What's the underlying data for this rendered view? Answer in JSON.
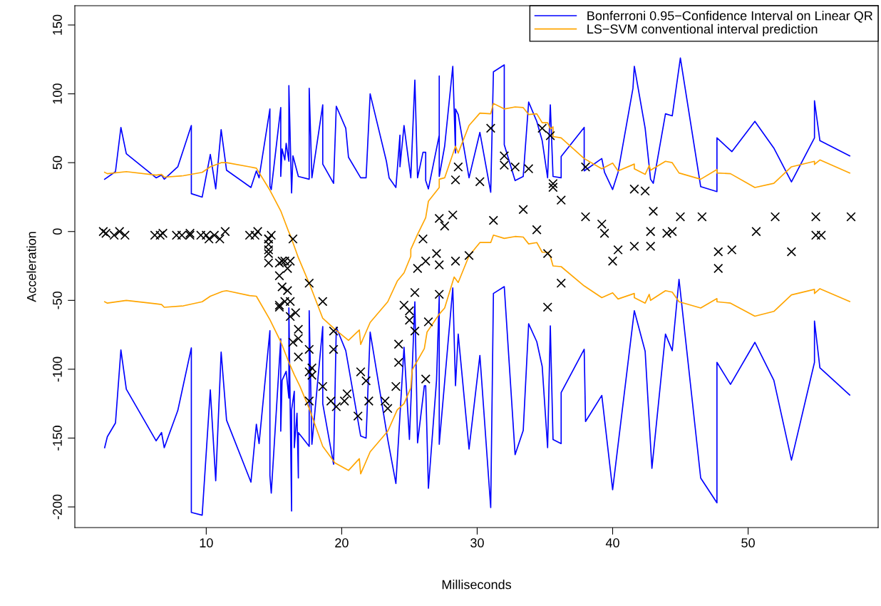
{
  "chart_data": {
    "type": "line",
    "xlabel": "Milliseconds",
    "ylabel": "Acceleration",
    "xlim": [
      0.3,
      59.6
    ],
    "ylim": [
      -215,
      164
    ],
    "xticks": [
      10,
      20,
      30,
      40,
      50
    ],
    "yticks": [
      -200,
      -150,
      -100,
      -50,
      0,
      50,
      100,
      150
    ],
    "grid": false,
    "legend": "top right",
    "series": [
      {
        "type": "scatter",
        "color": "#000000",
        "marker": "cross",
        "x": [
          2.4,
          2.6,
          3.2,
          3.6,
          4.0,
          6.2,
          6.6,
          6.8,
          7.8,
          8.2,
          8.8,
          8.8,
          9.6,
          10.0,
          10.2,
          10.6,
          11.0,
          11.4,
          13.2,
          13.6,
          13.8,
          14.6,
          14.6,
          14.6,
          14.6,
          14.6,
          14.6,
          14.8,
          15.4,
          15.4,
          15.4,
          15.4,
          15.6,
          15.6,
          15.8,
          15.8,
          16.0,
          16.0,
          16.2,
          16.2,
          16.2,
          16.4,
          16.4,
          16.6,
          16.8,
          16.8,
          16.8,
          17.6,
          17.6,
          17.6,
          17.6,
          17.8,
          17.8,
          18.6,
          18.6,
          19.2,
          19.4,
          19.4,
          19.6,
          20.2,
          20.4,
          21.2,
          21.4,
          21.8,
          22.0,
          23.2,
          23.4,
          24.0,
          24.2,
          24.2,
          24.6,
          25.0,
          25.0,
          25.4,
          25.4,
          25.6,
          26.0,
          26.2,
          26.2,
          26.4,
          27.0,
          27.2,
          27.2,
          27.2,
          27.6,
          28.2,
          28.4,
          28.4,
          28.6,
          29.4,
          30.2,
          31.0,
          31.2,
          32.0,
          32.0,
          32.8,
          33.4,
          33.8,
          34.4,
          34.8,
          35.2,
          35.2,
          35.4,
          35.6,
          35.6,
          36.2,
          36.2,
          38.0,
          38.0,
          39.2,
          39.4,
          40.0,
          40.4,
          41.6,
          41.6,
          42.4,
          42.8,
          42.8,
          43.0,
          44.0,
          44.4,
          45.0,
          46.6,
          47.8,
          47.8,
          48.8,
          50.6,
          52.0,
          53.2,
          55.0,
          55.0,
          55.4,
          57.6
        ],
        "values": [
          0.0,
          -1.3,
          -2.7,
          0.0,
          -2.7,
          -2.7,
          -2.7,
          -1.3,
          -2.7,
          -2.7,
          -1.3,
          -2.7,
          -2.7,
          -2.7,
          -5.4,
          -2.7,
          -5.4,
          0.0,
          -2.7,
          -2.7,
          0.0,
          -13.3,
          -5.4,
          -5.4,
          -9.3,
          -16.0,
          -22.8,
          -2.7,
          -22.8,
          -32.1,
          -53.5,
          -54.9,
          -40.2,
          -21.5,
          -21.5,
          -50.8,
          -42.9,
          -26.8,
          -21.5,
          -50.8,
          -61.7,
          -5.4,
          -80.4,
          -59.0,
          -71.0,
          -91.1,
          -77.7,
          -37.5,
          -85.6,
          -123.1,
          -101.9,
          -99.1,
          -104.4,
          -112.5,
          -50.8,
          -123.1,
          -85.6,
          -72.3,
          -127.2,
          -123.1,
          -117.9,
          -134.0,
          -101.9,
          -108.4,
          -123.1,
          -123.1,
          -128.5,
          -112.5,
          -95.1,
          -81.8,
          -53.5,
          -64.4,
          -57.6,
          -72.3,
          -44.3,
          -26.8,
          -5.4,
          -107.1,
          -21.5,
          -65.6,
          -16.0,
          -45.6,
          -24.2,
          9.5,
          4.0,
          12.0,
          -21.5,
          37.5,
          46.9,
          -17.4,
          36.2,
          75.0,
          8.1,
          54.9,
          48.2,
          46.9,
          16.0,
          45.6,
          1.3,
          75.0,
          -16.0,
          -54.9,
          69.6,
          34.8,
          32.1,
          -37.5,
          22.8,
          46.9,
          10.7,
          5.4,
          -1.3,
          -21.5,
          -13.3,
          30.8,
          -10.7,
          29.4,
          0.0,
          -10.7,
          14.7,
          -1.3,
          0.0,
          10.7,
          10.7,
          -26.8,
          -14.7,
          -13.3,
          0.0,
          10.7,
          -14.7,
          -2.7,
          10.7,
          -2.7,
          10.7
        ]
      },
      {
        "name": "Bonferroni 0.95−Confidence Interval on Linear QR",
        "color": "#0000ff",
        "x": [
          2.5,
          3.3,
          3.7,
          4.1,
          6.3,
          6.7,
          6.9,
          7.9,
          8.9,
          8.9,
          9.7,
          10.3,
          10.7,
          11.1,
          11.5,
          13.3,
          13.7,
          13.9,
          14.7,
          14.7,
          14.8,
          15.5,
          15.5,
          15.6,
          15.8,
          15.9,
          16.1,
          16.1,
          16.3,
          16.4,
          16.8,
          17.6,
          17.6,
          17.8,
          18.6,
          18.6,
          19.4,
          19.6,
          20.3,
          20.5,
          21.4,
          21.8,
          22.1,
          23.3,
          23.5,
          24.0,
          24.3,
          24.3,
          24.6,
          25.1,
          25.4,
          25.6,
          26.0,
          26.2,
          26.2,
          26.4,
          27.2,
          27.2,
          27.2,
          27.6,
          28.2,
          28.4,
          28.4,
          28.6,
          29.4,
          30.2,
          31.0,
          31.2,
          32.0,
          32.0,
          32.8,
          33.4,
          33.8,
          34.4,
          34.8,
          35.2,
          35.4,
          35.6,
          36.2,
          36.2,
          37.9,
          37.9,
          39.2,
          39.4,
          40.0,
          40.4,
          41.5,
          41.6,
          42.4,
          42.8,
          43.0,
          43.9,
          44.4,
          45.0,
          46.5,
          47.7,
          47.7,
          48.8,
          50.5,
          51.9,
          53.2,
          54.9,
          54.9,
          55.3,
          57.5
        ],
        "values": [
          38,
          43.5,
          75.6,
          56.5,
          39,
          41,
          38,
          47,
          77,
          27.5,
          25,
          56,
          31,
          74,
          44.5,
          32,
          44,
          39,
          89,
          33,
          30.5,
          90,
          40,
          60,
          52,
          64,
          51,
          106,
          28,
          55,
          40,
          38,
          104,
          39,
          92,
          49,
          35,
          91,
          75,
          54,
          39,
          39,
          100,
          51,
          39,
          32,
          70,
          47,
          77,
          39,
          110,
          39,
          57.5,
          57.5,
          37,
          31,
          70,
          113,
          40,
          62,
          120,
          57,
          89,
          85,
          39,
          72,
          28.5,
          116,
          121,
          63,
          37,
          40,
          94,
          80,
          66,
          39,
          92,
          40,
          39,
          54.5,
          75.6,
          44,
          53,
          43,
          30.5,
          43,
          104,
          120,
          75,
          38,
          35,
          85.5,
          84,
          126,
          32.6,
          29,
          68,
          58,
          80,
          60.6,
          36,
          68,
          95,
          66,
          55
        ]
      },
      {
        "color": "#0000ff",
        "x": [
          2.5,
          2.7,
          3.3,
          3.7,
          4.1,
          6.3,
          6.7,
          6.9,
          7.9,
          8.9,
          8.9,
          9.7,
          10.3,
          10.7,
          11.1,
          11.5,
          13.3,
          13.7,
          13.9,
          14.7,
          14.7,
          14.8,
          15.5,
          15.5,
          15.6,
          15.9,
          16.1,
          16.1,
          16.3,
          16.3,
          16.5,
          16.5,
          16.7,
          16.8,
          16.8,
          17.6,
          17.6,
          17.8,
          18.6,
          18.6,
          19.4,
          19.6,
          20.3,
          21.4,
          21.8,
          22.1,
          23.4,
          24.0,
          24.6,
          25.0,
          25.4,
          25.6,
          26.1,
          26.2,
          26.4,
          27.0,
          27.2,
          27.2,
          28.2,
          28.4,
          28.6,
          29.4,
          30.2,
          31.0,
          31.2,
          32.0,
          32.8,
          33.4,
          33.8,
          34.4,
          34.8,
          35.2,
          35.4,
          35.6,
          36.2,
          36.2,
          37.9,
          38.0,
          39.2,
          40.0,
          41.6,
          42.4,
          42.9,
          43.9,
          44.4,
          44.9,
          46.5,
          47.7,
          47.7,
          48.7,
          50.5,
          51.9,
          53.2,
          54.9,
          54.9,
          55.3,
          57.5
        ],
        "values": [
          -157,
          -149,
          -139,
          -86,
          -114.5,
          -152,
          -146,
          -157,
          -130,
          -84.5,
          -204,
          -206,
          -115,
          -181,
          -87.5,
          -137,
          -182,
          -140,
          -154,
          -72,
          -177,
          -190,
          -78,
          -145,
          -108,
          -101.5,
          -121,
          -55.5,
          -203,
          -129.5,
          -116,
          -157,
          -132,
          -179,
          -146,
          -156,
          -57.5,
          -154.5,
          -69,
          -125,
          -169,
          -69.5,
          -86.5,
          -148.5,
          -150,
          -73,
          -151,
          -183,
          -84,
          -151,
          -51,
          -153.5,
          -112,
          -112,
          -186.5,
          -108,
          -47,
          -154.5,
          -41,
          -112,
          -74.5,
          -158,
          -90,
          -200.5,
          -45,
          -40,
          -162,
          -144.5,
          -67,
          -80,
          -98,
          -157,
          -68.5,
          -151,
          -154,
          -117,
          -85.5,
          -138,
          -119,
          -187.5,
          -57.5,
          -87,
          -172,
          -74.5,
          -86.5,
          -34.7,
          -179,
          -197,
          -95,
          -111,
          -80.5,
          -108,
          -166,
          -95,
          -65,
          -99,
          -118.7
        ]
      },
      {
        "name": "LS−SVM conventional interval prediction",
        "color": "#ffa500",
        "x": [
          2.5,
          2.7,
          4.1,
          6.3,
          6.7,
          6.9,
          8.3,
          9.7,
          10.3,
          11.1,
          11.5,
          13.2,
          13.7,
          14.7,
          15.5,
          16.1,
          16.2,
          16.8,
          17.7,
          18.6,
          19.5,
          20.5,
          21.3,
          21.4,
          22.1,
          23.4,
          24.1,
          24.6,
          25.1,
          25.1,
          25.6,
          26.2,
          26.4,
          27.2,
          27.2,
          27.6,
          28.4,
          28.6,
          29.4,
          30.2,
          31.0,
          31.2,
          32.0,
          32.8,
          33.4,
          33.8,
          34.4,
          34.8,
          35.2,
          35.4,
          35.6,
          35.6,
          36.2,
          37.9,
          39.2,
          40.0,
          40.4,
          41.6,
          41.6,
          42.4,
          42.7,
          42.8,
          43.9,
          44.4,
          44.9,
          46.5,
          47.7,
          47.7,
          48.7,
          50.5,
          51.9,
          53.2,
          54.9,
          54.9,
          55.3,
          57.5
        ],
        "values": [
          43,
          42,
          43.5,
          41,
          41.5,
          39.5,
          40.5,
          43,
          47,
          50,
          50,
          47,
          46,
          30,
          15,
          -0.5,
          -2.6,
          -19,
          -40,
          -63,
          -71,
          -79,
          -71.5,
          -82,
          -66,
          -51,
          -36,
          -30,
          -18,
          -13,
          -2,
          10,
          22,
          32,
          38,
          39,
          62,
          57,
          77,
          86,
          85.5,
          93,
          89,
          90.5,
          90,
          85,
          85.5,
          79,
          79,
          74.5,
          76,
          69,
          68,
          53,
          45.6,
          49.7,
          44,
          49,
          45.6,
          41.5,
          48,
          44.5,
          51,
          50,
          42.5,
          38,
          45,
          42.5,
          42,
          32,
          35,
          47,
          51,
          48.7,
          52,
          42.5
        ]
      },
      {
        "color": "#ffa500",
        "x": [
          2.5,
          2.7,
          4.1,
          6.3,
          6.7,
          6.9,
          8.3,
          9.7,
          10.3,
          11.2,
          11.5,
          13.2,
          13.7,
          14.7,
          15.5,
          16.1,
          16.5,
          16.9,
          17.6,
          18.6,
          19.5,
          20.5,
          21.3,
          21.4,
          22.1,
          23.4,
          24.1,
          24.6,
          25.1,
          25.2,
          26.1,
          26.3,
          27.2,
          27.6,
          28.3,
          28.6,
          29.4,
          30.2,
          31.0,
          31.2,
          32.0,
          32.8,
          33.4,
          33.8,
          34.4,
          34.8,
          35.2,
          35.4,
          35.6,
          36.2,
          37.9,
          39.2,
          40.0,
          40.4,
          41.6,
          41.6,
          42.4,
          42.7,
          42.8,
          43.9,
          44.4,
          44.9,
          46.5,
          47.7,
          47.7,
          48.7,
          50.5,
          51.9,
          53.2,
          54.9,
          54.9,
          55.3,
          57.5
        ],
        "values": [
          -51,
          -52,
          -50,
          -52.5,
          -53,
          -55,
          -54,
          -51,
          -47,
          -43.5,
          -43,
          -46.5,
          -47,
          -64,
          -80,
          -95,
          -104,
          -112,
          -128.5,
          -156,
          -168,
          -173.5,
          -165,
          -176,
          -160,
          -145,
          -129.5,
          -125,
          -113.5,
          -100.5,
          -85,
          -73,
          -60,
          -55.5,
          -33,
          -37,
          -17.6,
          -8,
          -8,
          -2.6,
          -5,
          -3.6,
          -4,
          -9,
          -8,
          -15,
          -15,
          -18,
          -25,
          -25.5,
          -39.5,
          -48,
          -44.5,
          -49,
          -45,
          -48,
          -52,
          -45.6,
          -50,
          -43,
          -44,
          -51,
          -55.5,
          -48.7,
          -51,
          -52,
          -61.5,
          -58,
          -46,
          -42,
          -45,
          -41.5,
          -50.8
        ]
      }
    ]
  }
}
